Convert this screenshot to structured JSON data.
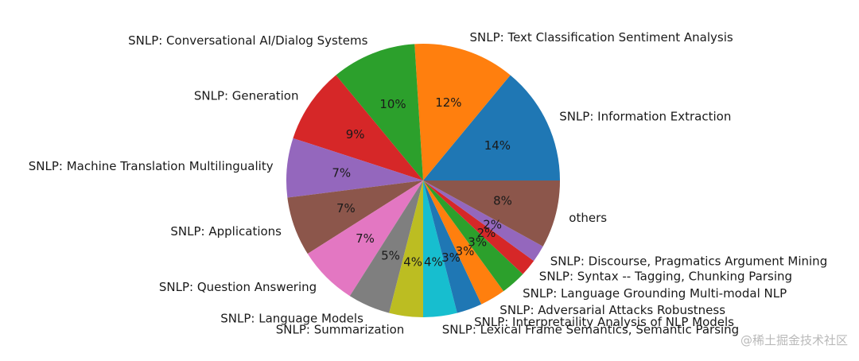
{
  "chart_data": {
    "type": "pie",
    "start_angle_deg": 0,
    "direction": "counterclockwise",
    "slices": [
      {
        "label": "SNLP: Information Extraction",
        "value": 14,
        "pct_label": "14%",
        "color": "#1f77b4"
      },
      {
        "label": "SNLP: Text Classification Sentiment Analysis",
        "value": 12,
        "pct_label": "12%",
        "color": "#ff7f0e"
      },
      {
        "label": "SNLP: Conversational AI/Dialog Systems",
        "value": 10,
        "pct_label": "10%",
        "color": "#2ca02c"
      },
      {
        "label": "SNLP: Generation",
        "value": 9,
        "pct_label": "9%",
        "color": "#d62728"
      },
      {
        "label": "SNLP: Machine Translation Multilinguality",
        "value": 7,
        "pct_label": "7%",
        "color": "#9467bd"
      },
      {
        "label": "SNLP: Applications",
        "value": 7,
        "pct_label": "7%",
        "color": "#8c564b"
      },
      {
        "label": "SNLP: Question Answering",
        "value": 7,
        "pct_label": "7%",
        "color": "#e377c2"
      },
      {
        "label": "SNLP: Language Models",
        "value": 5,
        "pct_label": "5%",
        "color": "#7f7f7f"
      },
      {
        "label": "SNLP: Summarization",
        "value": 4,
        "pct_label": "4%",
        "color": "#bcbd22"
      },
      {
        "label": "SNLP: Lexical Frame Semantics, Semantic Parsing",
        "value": 4,
        "pct_label": "4%",
        "color": "#17becf"
      },
      {
        "label": "SNLP: Interpretaility Analysis of NLP Models",
        "value": 3,
        "pct_label": "3%",
        "color": "#1f77b4"
      },
      {
        "label": "SNLP: Adversarial Attacks Robustness",
        "value": 3,
        "pct_label": "3%",
        "color": "#ff7f0e"
      },
      {
        "label": "SNLP: Language Grounding Multi-modal NLP",
        "value": 3,
        "pct_label": "3%",
        "color": "#2ca02c"
      },
      {
        "label": "SNLP: Syntax -- Tagging, Chunking Parsing",
        "value": 2,
        "pct_label": "2%",
        "color": "#d62728"
      },
      {
        "label": "SNLP: Discourse, Pragmatics Argument Mining",
        "value": 2,
        "pct_label": "2%",
        "color": "#9467bd"
      },
      {
        "label": "others",
        "value": 8,
        "pct_label": "8%",
        "color": "#8c564b"
      }
    ]
  },
  "watermark": "@稀土掘金技术社区"
}
